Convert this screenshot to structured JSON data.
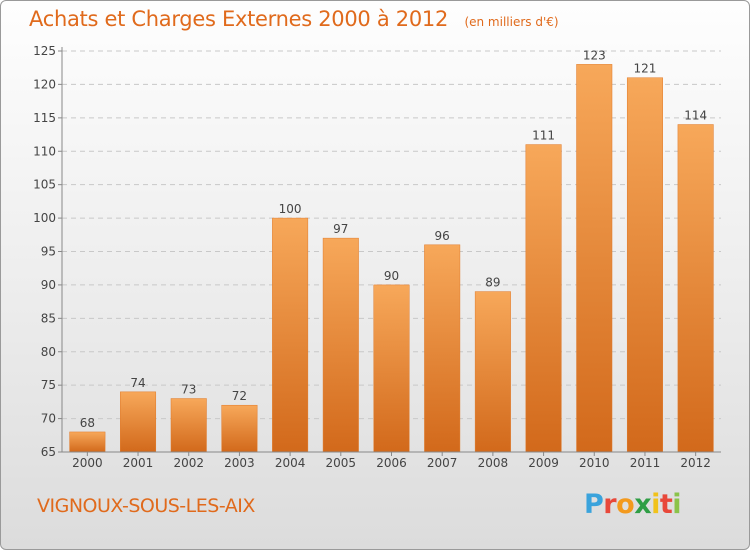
{
  "header": {
    "title": "Achats et Charges Externes 2000 à 2012",
    "subtitle": "(en milliers d'€)"
  },
  "footer": {
    "place": "VIGNOUX-SOUS-LES-AIX",
    "logo_letters": [
      "P",
      "r",
      "o",
      "x",
      "i",
      "t",
      "i"
    ]
  },
  "colors": {
    "title": "#e06a1c",
    "bar_top": "#f7a85a",
    "bar_bottom": "#d2691b",
    "grid": "#c8c8c8"
  },
  "chart_data": {
    "type": "bar",
    "categories": [
      "2000",
      "2001",
      "2002",
      "2003",
      "2004",
      "2005",
      "2006",
      "2007",
      "2008",
      "2009",
      "2010",
      "2011",
      "2012"
    ],
    "values": [
      68,
      74,
      73,
      72,
      100,
      97,
      90,
      96,
      89,
      111,
      123,
      121,
      114
    ],
    "ylim": [
      65,
      125
    ],
    "yticks": [
      65,
      70,
      75,
      80,
      85,
      90,
      95,
      100,
      105,
      110,
      115,
      120,
      125
    ],
    "grid": "horizontal dashed",
    "data_labels": true
  }
}
